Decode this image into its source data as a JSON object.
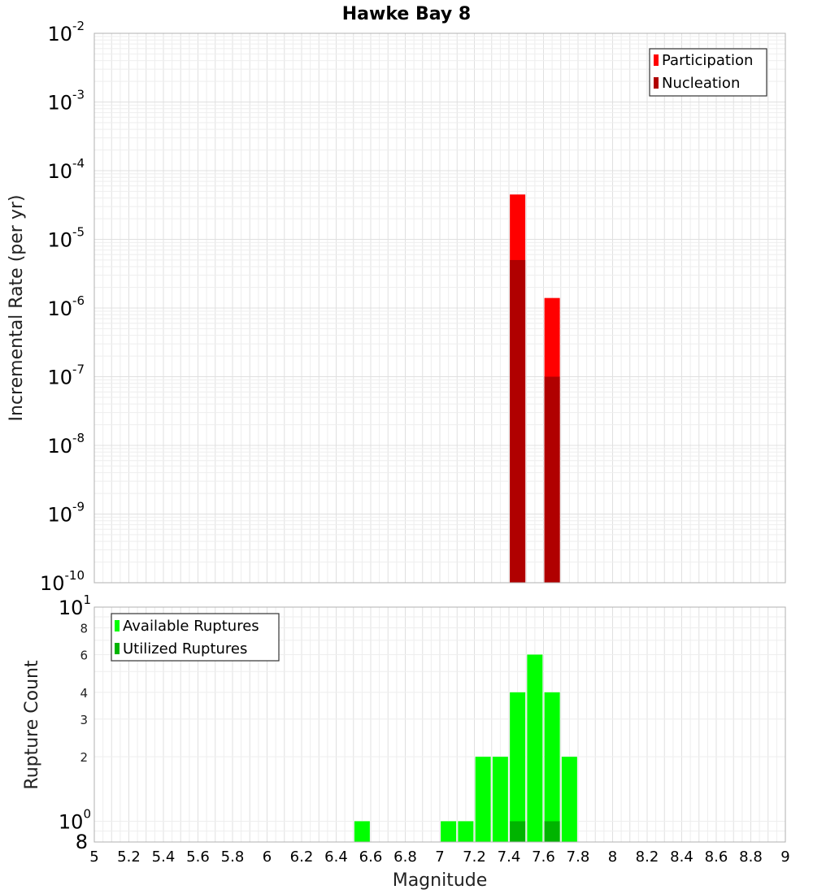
{
  "title": "Hawke Bay 8",
  "xlabel": "Magnitude",
  "chart_data": [
    {
      "type": "bar",
      "scale": "log",
      "title": "Hawke Bay 8",
      "ylabel": "Incremental Rate (per yr)",
      "ylim_exponents": [
        -10,
        -2
      ],
      "y_tick_labels": [
        {
          "exp": -2,
          "base": "10",
          "sup": "-2"
        },
        {
          "exp": -3,
          "base": "10",
          "sup": "-3"
        },
        {
          "exp": -4,
          "base": "10",
          "sup": "-4"
        },
        {
          "exp": -5,
          "base": "10",
          "sup": "-5"
        },
        {
          "exp": -6,
          "base": "10",
          "sup": "-6"
        },
        {
          "exp": -7,
          "base": "10",
          "sup": "-7"
        },
        {
          "exp": -8,
          "base": "10",
          "sup": "-8"
        },
        {
          "exp": -9,
          "base": "10",
          "sup": "-9"
        },
        {
          "exp": -10,
          "base": "10",
          "sup": "-10"
        }
      ],
      "legend": "top-right",
      "series": [
        {
          "name": "Participation",
          "color": "#ff0000",
          "points": [
            {
              "x": 7.45,
              "y": 4.5e-05
            },
            {
              "x": 7.65,
              "y": 1.4e-06
            }
          ]
        },
        {
          "name": "Nucleation",
          "color": "#b00000",
          "points": [
            {
              "x": 7.45,
              "y": 5e-06
            },
            {
              "x": 7.65,
              "y": 1e-07
            }
          ]
        }
      ]
    },
    {
      "type": "bar",
      "scale": "log",
      "ylabel": "Rupture Count",
      "ylim": [
        0.8,
        10
      ],
      "y_tick_labels": [
        {
          "value": 10,
          "base": "10",
          "sup": "1"
        },
        {
          "value": 8,
          "label": "8"
        },
        {
          "value": 6,
          "label": "6"
        },
        {
          "value": 4,
          "label": "4"
        },
        {
          "value": 3,
          "label": "3"
        },
        {
          "value": 2,
          "label": "2"
        },
        {
          "value": 1,
          "base": "10",
          "sup": "0"
        },
        {
          "value": 0.8,
          "label": "8"
        }
      ],
      "legend": "top-left",
      "series": [
        {
          "name": "Available Ruptures",
          "color": "#00ff00",
          "points": [
            {
              "x": 6.55,
              "y": 1
            },
            {
              "x": 7.05,
              "y": 1
            },
            {
              "x": 7.15,
              "y": 1
            },
            {
              "x": 7.25,
              "y": 2
            },
            {
              "x": 7.35,
              "y": 2
            },
            {
              "x": 7.45,
              "y": 4
            },
            {
              "x": 7.55,
              "y": 6
            },
            {
              "x": 7.65,
              "y": 4
            },
            {
              "x": 7.75,
              "y": 2
            }
          ]
        },
        {
          "name": "Utilized Ruptures",
          "color": "#00b400",
          "points": [
            {
              "x": 7.45,
              "y": 1
            },
            {
              "x": 7.65,
              "y": 1
            }
          ]
        }
      ]
    }
  ],
  "x_axis": {
    "xlim": [
      5,
      9
    ],
    "tick_labels": [
      "5",
      "5.2",
      "5.4",
      "5.6",
      "5.8",
      "6",
      "6.2",
      "6.4",
      "6.6",
      "6.8",
      "7",
      "7.2",
      "7.4",
      "7.6",
      "7.8",
      "8",
      "8.2",
      "8.4",
      "8.6",
      "8.8",
      "9"
    ]
  }
}
